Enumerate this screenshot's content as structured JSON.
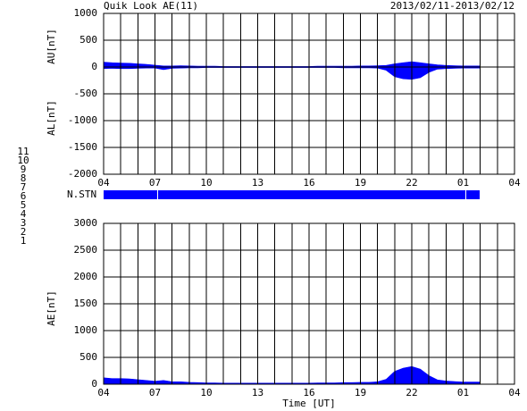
{
  "header": {
    "title": "Quik Look AE(11)",
    "date_range": "2013/02/11-2013/02/12"
  },
  "n_stn_label": "N.STN",
  "station_legend": [
    {
      "label": "11",
      "color": "#00d8d8"
    },
    {
      "label": "10",
      "color": "#ff00ff"
    },
    {
      "label": "9",
      "color": "#3030e0"
    },
    {
      "label": "8",
      "color": "#e8e800"
    },
    {
      "label": "7",
      "color": "#a8d070"
    },
    {
      "label": "6",
      "color": "#ff0000"
    },
    {
      "label": "5",
      "color": "#c8c8c8"
    },
    {
      "label": "4",
      "color": "#a0a0a0"
    },
    {
      "label": "3",
      "color": "#008080"
    },
    {
      "label": "2",
      "color": "#8000a0"
    },
    {
      "label": "1",
      "color": "#0000ff"
    }
  ],
  "chart_data": [
    {
      "type": "area",
      "y_label_upper": "AU[nT]",
      "y_label_lower": "AL[nT]",
      "x": [
        4,
        4.5,
        5,
        5.5,
        6,
        6.5,
        7,
        7.5,
        8,
        8.5,
        9,
        9.5,
        10,
        10.5,
        11,
        11.5,
        12,
        12.5,
        13,
        13.5,
        14,
        14.5,
        15,
        15.5,
        16,
        16.5,
        17,
        17.5,
        18,
        18.5,
        19,
        19.5,
        20,
        20.5,
        21,
        21.5,
        22,
        22.5,
        23,
        23.5,
        24,
        24.5,
        25,
        25.5,
        26
      ],
      "series": [
        {
          "color": "#0000ff",
          "values": [
            90,
            80,
            75,
            70,
            60,
            50,
            35,
            20,
            20,
            25,
            20,
            15,
            15,
            15,
            10,
            10,
            10,
            10,
            10,
            10,
            10,
            10,
            10,
            10,
            10,
            15,
            15,
            15,
            15,
            15,
            20,
            20,
            25,
            30,
            60,
            80,
            100,
            80,
            60,
            40,
            30,
            25,
            20,
            20,
            20
          ]
        },
        {
          "color": "#0000ff",
          "values": [
            -30,
            -25,
            -30,
            -30,
            -25,
            -20,
            -20,
            -50,
            -25,
            -20,
            -15,
            -15,
            -10,
            -10,
            -10,
            -10,
            -10,
            -10,
            -10,
            -10,
            -10,
            -10,
            -10,
            -10,
            -10,
            -10,
            -10,
            -10,
            -15,
            -15,
            -15,
            -15,
            -20,
            -60,
            -180,
            -220,
            -230,
            -200,
            -100,
            -40,
            -30,
            -25,
            -20,
            -20,
            -20
          ]
        }
      ],
      "xlim": [
        4,
        28
      ],
      "xticks": [
        {
          "value": 4,
          "label": "04"
        },
        {
          "value": 7,
          "label": "07"
        },
        10,
        13,
        16,
        19,
        22,
        {
          "value": 25,
          "label": "01"
        },
        {
          "value": 28,
          "label": "04"
        }
      ],
      "xgrid": [
        4,
        5,
        6,
        7,
        8,
        9,
        10,
        11,
        12,
        13,
        14,
        15,
        16,
        17,
        18,
        19,
        20,
        21,
        22,
        23,
        24,
        25,
        26,
        27,
        28
      ],
      "ylim": [
        -2000,
        1000
      ],
      "yticks": [
        1000,
        500,
        0,
        -500,
        -1000,
        -1500,
        -2000
      ],
      "grid": true
    },
    {
      "type": "area",
      "y_label": "AE[nT]",
      "xlabel": "Time [UT]",
      "x": [
        4,
        4.5,
        5,
        5.5,
        6,
        6.5,
        7,
        7.5,
        8,
        8.5,
        9,
        9.5,
        10,
        10.5,
        11,
        11.5,
        12,
        12.5,
        13,
        13.5,
        14,
        14.5,
        15,
        15.5,
        16,
        16.5,
        17,
        17.5,
        18,
        18.5,
        19,
        19.5,
        20,
        20.5,
        21,
        21.5,
        22,
        22.5,
        23,
        23.5,
        24,
        24.5,
        25,
        25.5,
        26
      ],
      "series": [
        {
          "color": "#0000ff",
          "values": [
            120,
            105,
            105,
            100,
            85,
            70,
            55,
            70,
            45,
            45,
            35,
            30,
            25,
            25,
            20,
            20,
            20,
            20,
            20,
            20,
            20,
            20,
            20,
            20,
            20,
            25,
            25,
            25,
            30,
            30,
            35,
            35,
            45,
            90,
            240,
            300,
            330,
            280,
            160,
            80,
            60,
            50,
            40,
            40,
            40
          ]
        }
      ],
      "xlim": [
        4,
        28
      ],
      "xticks": [
        {
          "value": 4,
          "label": "04"
        },
        {
          "value": 7,
          "label": "07"
        },
        10,
        13,
        16,
        19,
        22,
        {
          "value": 25,
          "label": "01"
        },
        {
          "value": 28,
          "label": "04"
        }
      ],
      "xgrid": [
        4,
        5,
        6,
        7,
        8,
        9,
        10,
        11,
        12,
        13,
        14,
        15,
        16,
        17,
        18,
        19,
        20,
        21,
        22,
        23,
        24,
        25,
        26,
        27,
        28
      ],
      "ylim": [
        0,
        3000
      ],
      "yticks": [
        3000,
        2500,
        2000,
        1500,
        1000,
        500,
        0
      ],
      "grid": true
    }
  ]
}
